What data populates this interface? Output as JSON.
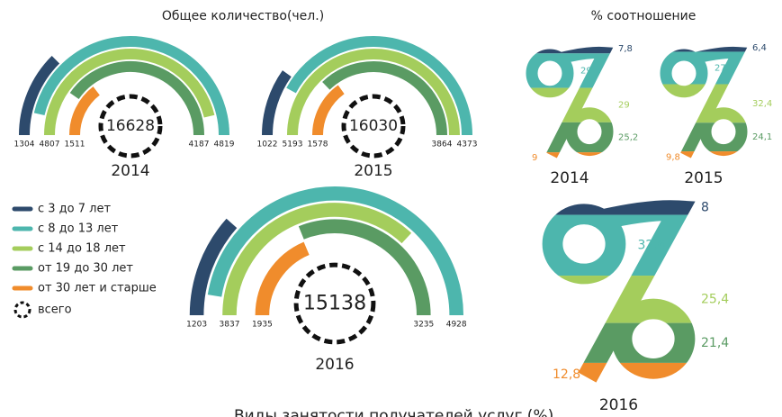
{
  "counts_title": "Общее количество(чел.)",
  "percent_title": "% соотношение",
  "legend": [
    {
      "label": "с 3 до 7 лет",
      "color": "#2d4a6c"
    },
    {
      "label": "с 8 до 13 лет",
      "color": "#4db6ad"
    },
    {
      "label": "с 14 до 18 лет",
      "color": "#a4cd5c"
    },
    {
      "label": "от 19 до 30 лет",
      "color": "#5a9b63"
    },
    {
      "label": "от 30 лет и старше",
      "color": "#f08c2c"
    }
  ],
  "total_label": "всего",
  "years": [
    {
      "year": "2014",
      "total": 16628,
      "values": [
        1304,
        4819,
        4807,
        4187,
        1511
      ],
      "percents": [
        7.8,
        29,
        29,
        25.2,
        9
      ],
      "percent_labels": [
        "7,8",
        "29",
        "29",
        "25,2",
        "9"
      ]
    },
    {
      "year": "2015",
      "total": 16030,
      "values": [
        1022,
        4373,
        5193,
        3864,
        1578
      ],
      "percents": [
        6.4,
        27.3,
        32.4,
        24.1,
        9.8
      ],
      "percent_labels": [
        "6,4",
        "27,3",
        "32,4",
        "24,1",
        "9,8"
      ]
    },
    {
      "year": "2016",
      "total": 15138,
      "values": [
        1203,
        4928,
        3837,
        3235,
        1935
      ],
      "percents": [
        8,
        32.6,
        25.4,
        21.4,
        12.8
      ],
      "percent_labels": [
        "8",
        "32,6",
        "25,4",
        "21,4",
        "12,8"
      ]
    }
  ],
  "footer": "Виды занятости получателей услуг (%)"
}
